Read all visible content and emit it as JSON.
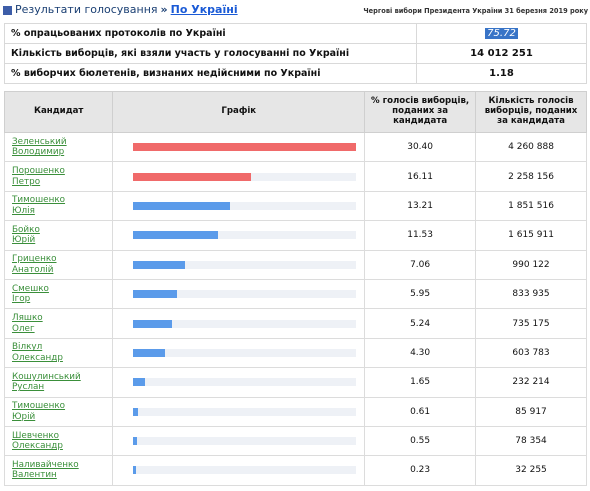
{
  "breadcrumb": {
    "root": "Результати голосування",
    "separator": "»",
    "current": "По Україні"
  },
  "election_title": "Чергові вибори Президента України 31 березня 2019 року",
  "summary": [
    {
      "label": "% опрацьованих протоколів по Україні",
      "value": "75.72"
    },
    {
      "label": "Кількість виборців, які взяли участь у голосуванні по Україні",
      "value": "14 012 251"
    },
    {
      "label": "% виборчих бюлетенів, визнаних недійсними по Україні",
      "value": "1.18"
    }
  ],
  "table": {
    "headers": {
      "candidate": "Кандидат",
      "chart": "Графік",
      "percent": "% голосів виборців, поданих за кандидата",
      "votes": "Кількість голосів виборців, поданих за кандидата"
    },
    "colors": {
      "top": "#f06a6a",
      "rest": "#5b9bea"
    },
    "max_percent": 30.4,
    "rows": [
      {
        "surname": "Зеленський",
        "name": "Володимир",
        "percent": "30.40",
        "votes": "4 260 888",
        "top": true
      },
      {
        "surname": "Порошенко",
        "name": "Петро",
        "percent": "16.11",
        "votes": "2 258 156",
        "top": true
      },
      {
        "surname": "Тимошенко",
        "name": "Юлія",
        "percent": "13.21",
        "votes": "1 851 516",
        "top": false
      },
      {
        "surname": "Бойко",
        "name": "Юрій",
        "percent": "11.53",
        "votes": "1 615 911",
        "top": false
      },
      {
        "surname": "Гриценко",
        "name": "Анатолій",
        "percent": "7.06",
        "votes": "990 122",
        "top": false
      },
      {
        "surname": "Смешко",
        "name": "Ігор",
        "percent": "5.95",
        "votes": "833 935",
        "top": false
      },
      {
        "surname": "Ляшко",
        "name": "Олег",
        "percent": "5.24",
        "votes": "735 175",
        "top": false
      },
      {
        "surname": "Вілкул",
        "name": "Олександр",
        "percent": "4.30",
        "votes": "603 783",
        "top": false
      },
      {
        "surname": "Кошулинський",
        "name": "Руслан",
        "percent": "1.65",
        "votes": "232 214",
        "top": false
      },
      {
        "surname": "Тимошенко",
        "name": "Юрій",
        "percent": "0.61",
        "votes": "85 917",
        "top": false
      },
      {
        "surname": "Шевченко",
        "name": "Олександр",
        "percent": "0.55",
        "votes": "78 354",
        "top": false
      },
      {
        "surname": "Наливайченко",
        "name": "Валентин",
        "percent": "0.23",
        "votes": "32 255",
        "top": false
      }
    ]
  }
}
